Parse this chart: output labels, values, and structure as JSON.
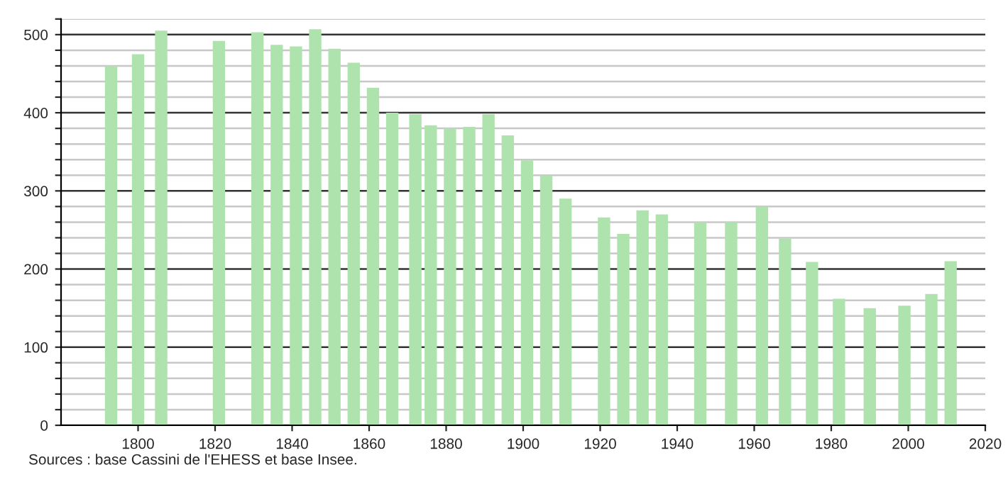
{
  "chart_data": {
    "type": "bar",
    "x": [
      1793,
      1800,
      1806,
      1821,
      1831,
      1836,
      1841,
      1846,
      1851,
      1856,
      1861,
      1866,
      1872,
      1876,
      1881,
      1886,
      1891,
      1896,
      1901,
      1906,
      1911,
      1921,
      1926,
      1931,
      1936,
      1946,
      1954,
      1962,
      1968,
      1975,
      1982,
      1990,
      1999,
      2006,
      2011
    ],
    "values": [
      460,
      475,
      505,
      492,
      503,
      487,
      485,
      507,
      482,
      464,
      432,
      400,
      398,
      384,
      380,
      382,
      398,
      371,
      339,
      320,
      290,
      266,
      245,
      275,
      270,
      260,
      260,
      280,
      239,
      209,
      162,
      150,
      153,
      168,
      210
    ],
    "color": "#aee3ae",
    "xlim": [
      1780,
      2020
    ],
    "xticks": [
      1800,
      1820,
      1840,
      1860,
      1880,
      1900,
      1920,
      1940,
      1960,
      1980,
      2000,
      2020
    ],
    "ylim": [
      0,
      520
    ],
    "yticks": [
      0,
      {
        "value": 20,
        "label": null
      },
      {
        "value": 40,
        "label": null
      },
      {
        "value": 60,
        "label": null
      },
      {
        "value": 80,
        "label": null
      },
      100,
      {
        "value": 120,
        "label": null
      },
      {
        "value": 140,
        "label": null
      },
      {
        "value": 160,
        "label": null
      },
      {
        "value": 180,
        "label": null
      },
      200,
      {
        "value": 220,
        "label": null
      },
      {
        "value": 240,
        "label": null
      },
      {
        "value": 260,
        "label": null
      },
      {
        "value": 280,
        "label": null
      },
      300,
      {
        "value": 320,
        "label": null
      },
      {
        "value": 340,
        "label": null
      },
      {
        "value": 360,
        "label": null
      },
      {
        "value": 380,
        "label": null
      },
      400,
      {
        "value": 420,
        "label": null
      },
      {
        "value": 440,
        "label": null
      },
      {
        "value": 460,
        "label": null
      },
      {
        "value": 480,
        "label": null
      },
      500,
      {
        "value": 520,
        "label": null
      }
    ],
    "grid": "y",
    "annotations": [
      "Sources : base Cassini de l'EHESS et base Insee."
    ]
  }
}
